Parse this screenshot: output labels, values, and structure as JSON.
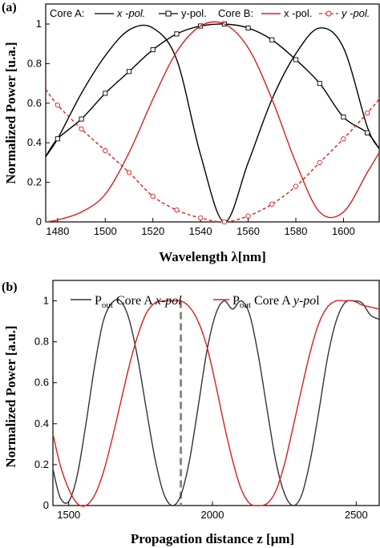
{
  "chart_data": [
    {
      "panel_label": "(a)",
      "type": "line",
      "xlabel": "Wavelength λ[nm]",
      "ylabel": "Normalized Power [u.a.]",
      "xlim": [
        1475,
        1615
      ],
      "ylim": [
        0,
        1
      ],
      "xticks": [
        "1480",
        "1500",
        "1520",
        "1540",
        "1560",
        "1580",
        "1600"
      ],
      "yticks": [
        "0",
        "0.2",
        "0.4",
        "0.6",
        "0.8",
        "1"
      ],
      "legend_groups": [
        "Core A:",
        "Core B:"
      ],
      "series": [
        {
          "name": "x -pol.",
          "group": "Core A",
          "color": "#000000",
          "style": "solid",
          "marker": "none",
          "x": [
            1475,
            1480,
            1490,
            1500,
            1510,
            1520,
            1530,
            1540,
            1550,
            1560,
            1570,
            1580,
            1590,
            1600,
            1610,
            1615
          ],
          "y": [
            0.33,
            0.42,
            0.65,
            0.84,
            0.97,
            0.98,
            0.82,
            0.34,
            0.0,
            0.3,
            0.62,
            0.85,
            0.98,
            0.88,
            0.48,
            0.37
          ]
        },
        {
          "name": "y-pol.",
          "group": "Core A",
          "color": "#000000",
          "style": "solid",
          "marker": "square",
          "x": [
            1475,
            1480,
            1490,
            1500,
            1510,
            1520,
            1530,
            1540,
            1550,
            1560,
            1570,
            1580,
            1590,
            1600,
            1610,
            1615
          ],
          "y": [
            0.33,
            0.42,
            0.52,
            0.65,
            0.76,
            0.87,
            0.95,
            0.99,
            1.0,
            0.98,
            0.92,
            0.82,
            0.7,
            0.53,
            0.45,
            0.37
          ]
        },
        {
          "name": "x -pol.",
          "group": "Core B",
          "color": "#d42020",
          "style": "solid",
          "marker": "none",
          "x": [
            1475,
            1480,
            1490,
            1500,
            1510,
            1520,
            1530,
            1540,
            1550,
            1560,
            1570,
            1580,
            1590,
            1600,
            1610,
            1615
          ],
          "y": [
            0.0,
            0.01,
            0.05,
            0.14,
            0.35,
            0.62,
            0.86,
            0.99,
            1.0,
            0.88,
            0.62,
            0.3,
            0.05,
            0.05,
            0.25,
            0.35
          ]
        },
        {
          "name": "y -pol.",
          "group": "Core B",
          "color": "#d42020",
          "style": "dashed",
          "marker": "circle",
          "x": [
            1475,
            1480,
            1490,
            1500,
            1510,
            1520,
            1530,
            1540,
            1550,
            1560,
            1570,
            1580,
            1590,
            1600,
            1610,
            1615
          ],
          "y": [
            0.67,
            0.59,
            0.47,
            0.36,
            0.25,
            0.13,
            0.06,
            0.02,
            0.0,
            0.03,
            0.09,
            0.18,
            0.3,
            0.42,
            0.55,
            0.62
          ]
        }
      ]
    },
    {
      "panel_label": "(b)",
      "type": "line",
      "xlabel": "Propagation distance z [μm]",
      "ylabel": "Normalized Power [a.u.]",
      "xlim": [
        1445,
        2580
      ],
      "ylim": [
        0,
        1.1
      ],
      "xticks": [
        "1500",
        "2000",
        "2500"
      ],
      "yticks": [
        "0",
        "0.2",
        "0.4",
        "0.6",
        "0.8",
        "1"
      ],
      "marker_line_x": 1890,
      "series": [
        {
          "name": "P",
          "name_sub": "out",
          "name_rest": " Core A ",
          "name_italic": "x-pol",
          "color": "#333333",
          "style": "solid",
          "x": [
            1445,
            1470,
            1500,
            1530,
            1560,
            1590,
            1620,
            1650,
            1680,
            1710,
            1740,
            1770,
            1800,
            1830,
            1860,
            1890,
            1920,
            1950,
            1980,
            2010,
            2040,
            2070,
            2100,
            2130,
            2160,
            2190,
            2220,
            2250,
            2280,
            2310,
            2340,
            2370,
            2400,
            2430,
            2460,
            2490,
            2520,
            2550,
            2580
          ],
          "y": [
            0.18,
            0.04,
            0.02,
            0.15,
            0.4,
            0.68,
            0.9,
            0.99,
            1.0,
            0.91,
            0.72,
            0.47,
            0.23,
            0.06,
            0.0,
            0.05,
            0.22,
            0.48,
            0.75,
            0.93,
            1.0,
            0.96,
            1.0,
            0.93,
            0.73,
            0.47,
            0.22,
            0.06,
            0.0,
            0.05,
            0.22,
            0.46,
            0.72,
            0.9,
            0.99,
            1.0,
            0.99,
            0.93,
            0.91
          ]
        },
        {
          "name": "P",
          "name_sub": "out",
          "name_rest": " Core A ",
          "name_italic": "y-po",
          "name_tail": "l",
          "color": "#d42020",
          "style": "solid",
          "x": [
            1445,
            1470,
            1500,
            1530,
            1560,
            1590,
            1620,
            1650,
            1680,
            1710,
            1740,
            1770,
            1800,
            1830,
            1860,
            1890,
            1920,
            1950,
            1980,
            2010,
            2040,
            2070,
            2100,
            2130,
            2160,
            2190,
            2220,
            2250,
            2280,
            2310,
            2340,
            2370,
            2400,
            2430,
            2460,
            2490,
            2520,
            2550,
            2580
          ],
          "y": [
            0.35,
            0.2,
            0.08,
            0.01,
            0.0,
            0.05,
            0.16,
            0.32,
            0.5,
            0.68,
            0.83,
            0.94,
            0.99,
            1.0,
            1.0,
            1.0,
            0.97,
            0.9,
            0.78,
            0.6,
            0.4,
            0.22,
            0.08,
            0.01,
            0.0,
            0.01,
            0.07,
            0.2,
            0.38,
            0.57,
            0.75,
            0.89,
            0.97,
            1.0,
            1.0,
            1.0,
            0.98,
            0.97,
            0.96
          ]
        }
      ]
    }
  ]
}
